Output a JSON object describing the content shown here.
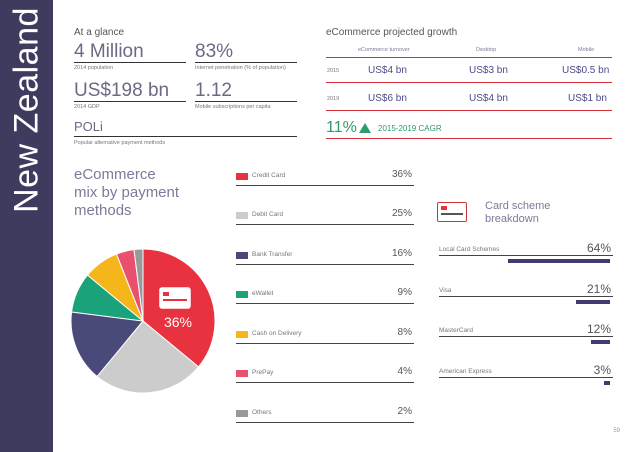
{
  "sidebar": {
    "title": "New Zealand"
  },
  "glance": {
    "title": "At a glance",
    "stats": [
      {
        "value": "4 Million",
        "label": "2014 population"
      },
      {
        "value": "83%",
        "label": "Internet penetration (% of population)"
      },
      {
        "value": "US$198 bn",
        "label": "2014 GDP"
      },
      {
        "value": "1.12",
        "label": "Mobile subscriptions per capita"
      },
      {
        "value": "POLi",
        "label": "Popular alternative payment methods"
      }
    ]
  },
  "growth": {
    "title": "eCommerce projected growth",
    "headers": [
      "eCommerce turnover",
      "Desktop",
      "Mobile"
    ],
    "rows": [
      {
        "year": "2015",
        "values": [
          "US$4 bn",
          "US$3 bn",
          "US$0.5 bn"
        ]
      },
      {
        "year": "2019",
        "values": [
          "US$6 bn",
          "US$4 bn",
          "US$1 bn"
        ]
      }
    ],
    "cagr_value": "11%",
    "cagr_label": "2015-2019 CAGR"
  },
  "mix": {
    "title_lines": [
      "eCommerce",
      "mix by payment",
      "methods"
    ],
    "highlight_label": "36%",
    "colors": [
      "#e8323f",
      "#cccccc",
      "#4a4a7a",
      "#1aa37a",
      "#f5b61c",
      "#e8506e",
      "#999999"
    ]
  },
  "chart_data": {
    "type": "pie",
    "title": "eCommerce mix by payment methods",
    "categories": [
      "Credit Card",
      "Debit Card",
      "Bank Transfer",
      "eWallet",
      "Cash on Delivery",
      "PrePay",
      "Others"
    ],
    "values": [
      36,
      25,
      16,
      9,
      8,
      4,
      2
    ],
    "value_labels": [
      "36%",
      "25%",
      "16%",
      "9%",
      "8%",
      "4%",
      "2%"
    ]
  },
  "card_scheme": {
    "title_lines": [
      "Card scheme",
      "breakdown"
    ],
    "rows": [
      {
        "label": "Local Card Schemes",
        "value": "64%",
        "pct": 64
      },
      {
        "label": "Visa",
        "value": "21%",
        "pct": 21
      },
      {
        "label": "MasterCard",
        "value": "12%",
        "pct": 12
      },
      {
        "label": "American Express",
        "value": "3%",
        "pct": 3
      }
    ]
  },
  "page": {
    "number": "59"
  }
}
